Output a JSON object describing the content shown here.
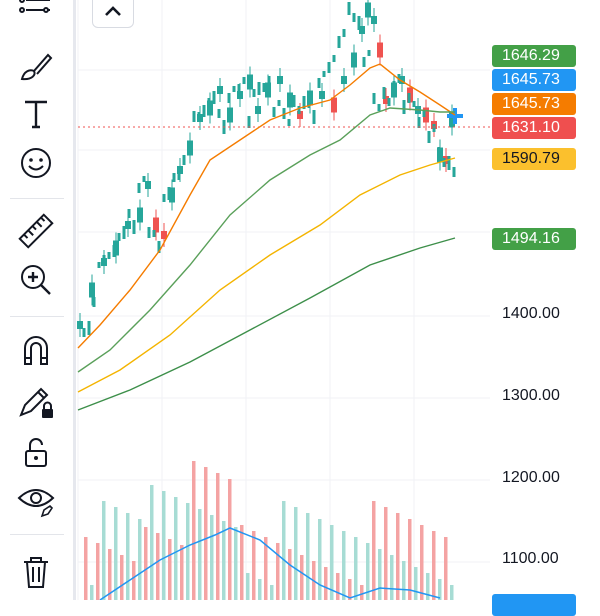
{
  "toolbar": {
    "tools": [
      {
        "name": "trend-lines-tool-icon"
      },
      {
        "name": "brush-tool-icon"
      },
      {
        "name": "text-tool-icon"
      },
      {
        "name": "emoji-tool-icon"
      },
      {
        "name": "ruler-measure-icon"
      },
      {
        "name": "zoom-in-icon"
      },
      {
        "name": "magnet-icon"
      },
      {
        "name": "lock-drawing-icon"
      },
      {
        "name": "unlock-icon"
      },
      {
        "name": "eye-visibility-icon"
      },
      {
        "name": "trash-icon"
      }
    ]
  },
  "collapse_button": {
    "icon": "chevron-up-icon"
  },
  "price_axis": {
    "labels": [
      "1400.00",
      "1300.00",
      "1200.00",
      "1100.00"
    ]
  },
  "price_tags": [
    {
      "value": "1646.29",
      "color": "#43a047"
    },
    {
      "value": "1645.73",
      "color": "#2196f3"
    },
    {
      "value": "1645.73",
      "color": "#f57c00"
    },
    {
      "value": "1631.10",
      "color": "#ef4f4f"
    },
    {
      "value": "1590.79",
      "color": "#fbc02d"
    },
    {
      "value": "1494.16",
      "color": "#43a047"
    }
  ],
  "colors": {
    "up": "#26a69a",
    "down": "#ef5350",
    "ma_orange": "#f57c00",
    "ma_green_light": "#5aa05a",
    "ma_yellow": "#f4b400",
    "ma_green_dark": "#3d8f4a",
    "volume_ma": "#2196f3",
    "current_price_line": "#ef5350",
    "crosshair": "#2196f3"
  }
}
